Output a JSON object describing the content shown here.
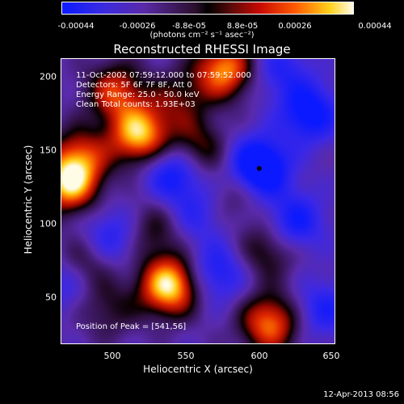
{
  "title": "Reconstructed RHESSI Image",
  "colorbar": {
    "ticks": [
      "-0.00044",
      "-0.00026",
      "-8.8e-05",
      "8.8e-05",
      "0.00026",
      "0.00044"
    ],
    "unit_label": "(photons cm⁻² s⁻¹ asec⁻²)",
    "range": [
      -0.00044,
      0.00044
    ]
  },
  "annotations": {
    "time": "11-Oct-2002 07:59:12.000 to 07:59:52.000",
    "detectors": "Detectors: 5F 6F 7F 8F, Att 0",
    "energy": "Energy Range: 25.0 - 50.0 keV",
    "clean": "Clean     Total counts: 1.93E+03",
    "peak": "Position of Peak = [541,56]"
  },
  "footer": {
    "date": "12-Apr-2013 08:56"
  },
  "chart_data": {
    "type": "heatmap",
    "title": "Reconstructed RHESSI Image",
    "xlabel": "Heliocentric X (arcsec)",
    "ylabel": "Heliocentric Y (arcsec)",
    "xlim": [
      465,
      658
    ],
    "ylim": [
      16,
      212
    ],
    "xticks": [
      "500",
      "550",
      "600",
      "650"
    ],
    "yticks": [
      "50",
      "100",
      "150",
      "200"
    ],
    "peak": [
      541,
      56
    ],
    "marker": [
      604,
      137
    ],
    "blobs": [
      {
        "x": 541,
        "y": 56,
        "v": 1.0
      },
      {
        "x": 520,
        "y": 160,
        "v": 0.9
      },
      {
        "x": 470,
        "y": 126,
        "v": 0.85
      },
      {
        "x": 580,
        "y": 205,
        "v": 0.8
      },
      {
        "x": 612,
        "y": 30,
        "v": 0.75
      },
      {
        "x": 503,
        "y": 190,
        "v": 0.6
      },
      {
        "x": 478,
        "y": 145,
        "v": 0.55
      },
      {
        "x": 560,
        "y": 150,
        "v": 0.5
      },
      {
        "x": 530,
        "y": 95,
        "v": 0.35
      },
      {
        "x": 480,
        "y": 70,
        "v": 0.45
      },
      {
        "x": 610,
        "y": 80,
        "v": 0.4
      },
      {
        "x": 590,
        "y": 120,
        "v": 0.3
      },
      {
        "x": 548,
        "y": 185,
        "v": 0.35
      },
      {
        "x": 498,
        "y": 40,
        "v": 0.3
      },
      {
        "x": 604,
        "y": 137,
        "v": -0.9
      },
      {
        "x": 640,
        "y": 175,
        "v": -0.6
      },
      {
        "x": 545,
        "y": 135,
        "v": -0.6
      },
      {
        "x": 470,
        "y": 60,
        "v": -0.4
      },
      {
        "x": 500,
        "y": 90,
        "v": -0.4
      },
      {
        "x": 575,
        "y": 65,
        "v": -0.45
      },
      {
        "x": 630,
        "y": 100,
        "v": -0.5
      },
      {
        "x": 650,
        "y": 40,
        "v": -0.4
      },
      {
        "x": 620,
        "y": 205,
        "v": -0.35
      },
      {
        "x": 560,
        "y": 105,
        "v": -0.3
      }
    ]
  }
}
